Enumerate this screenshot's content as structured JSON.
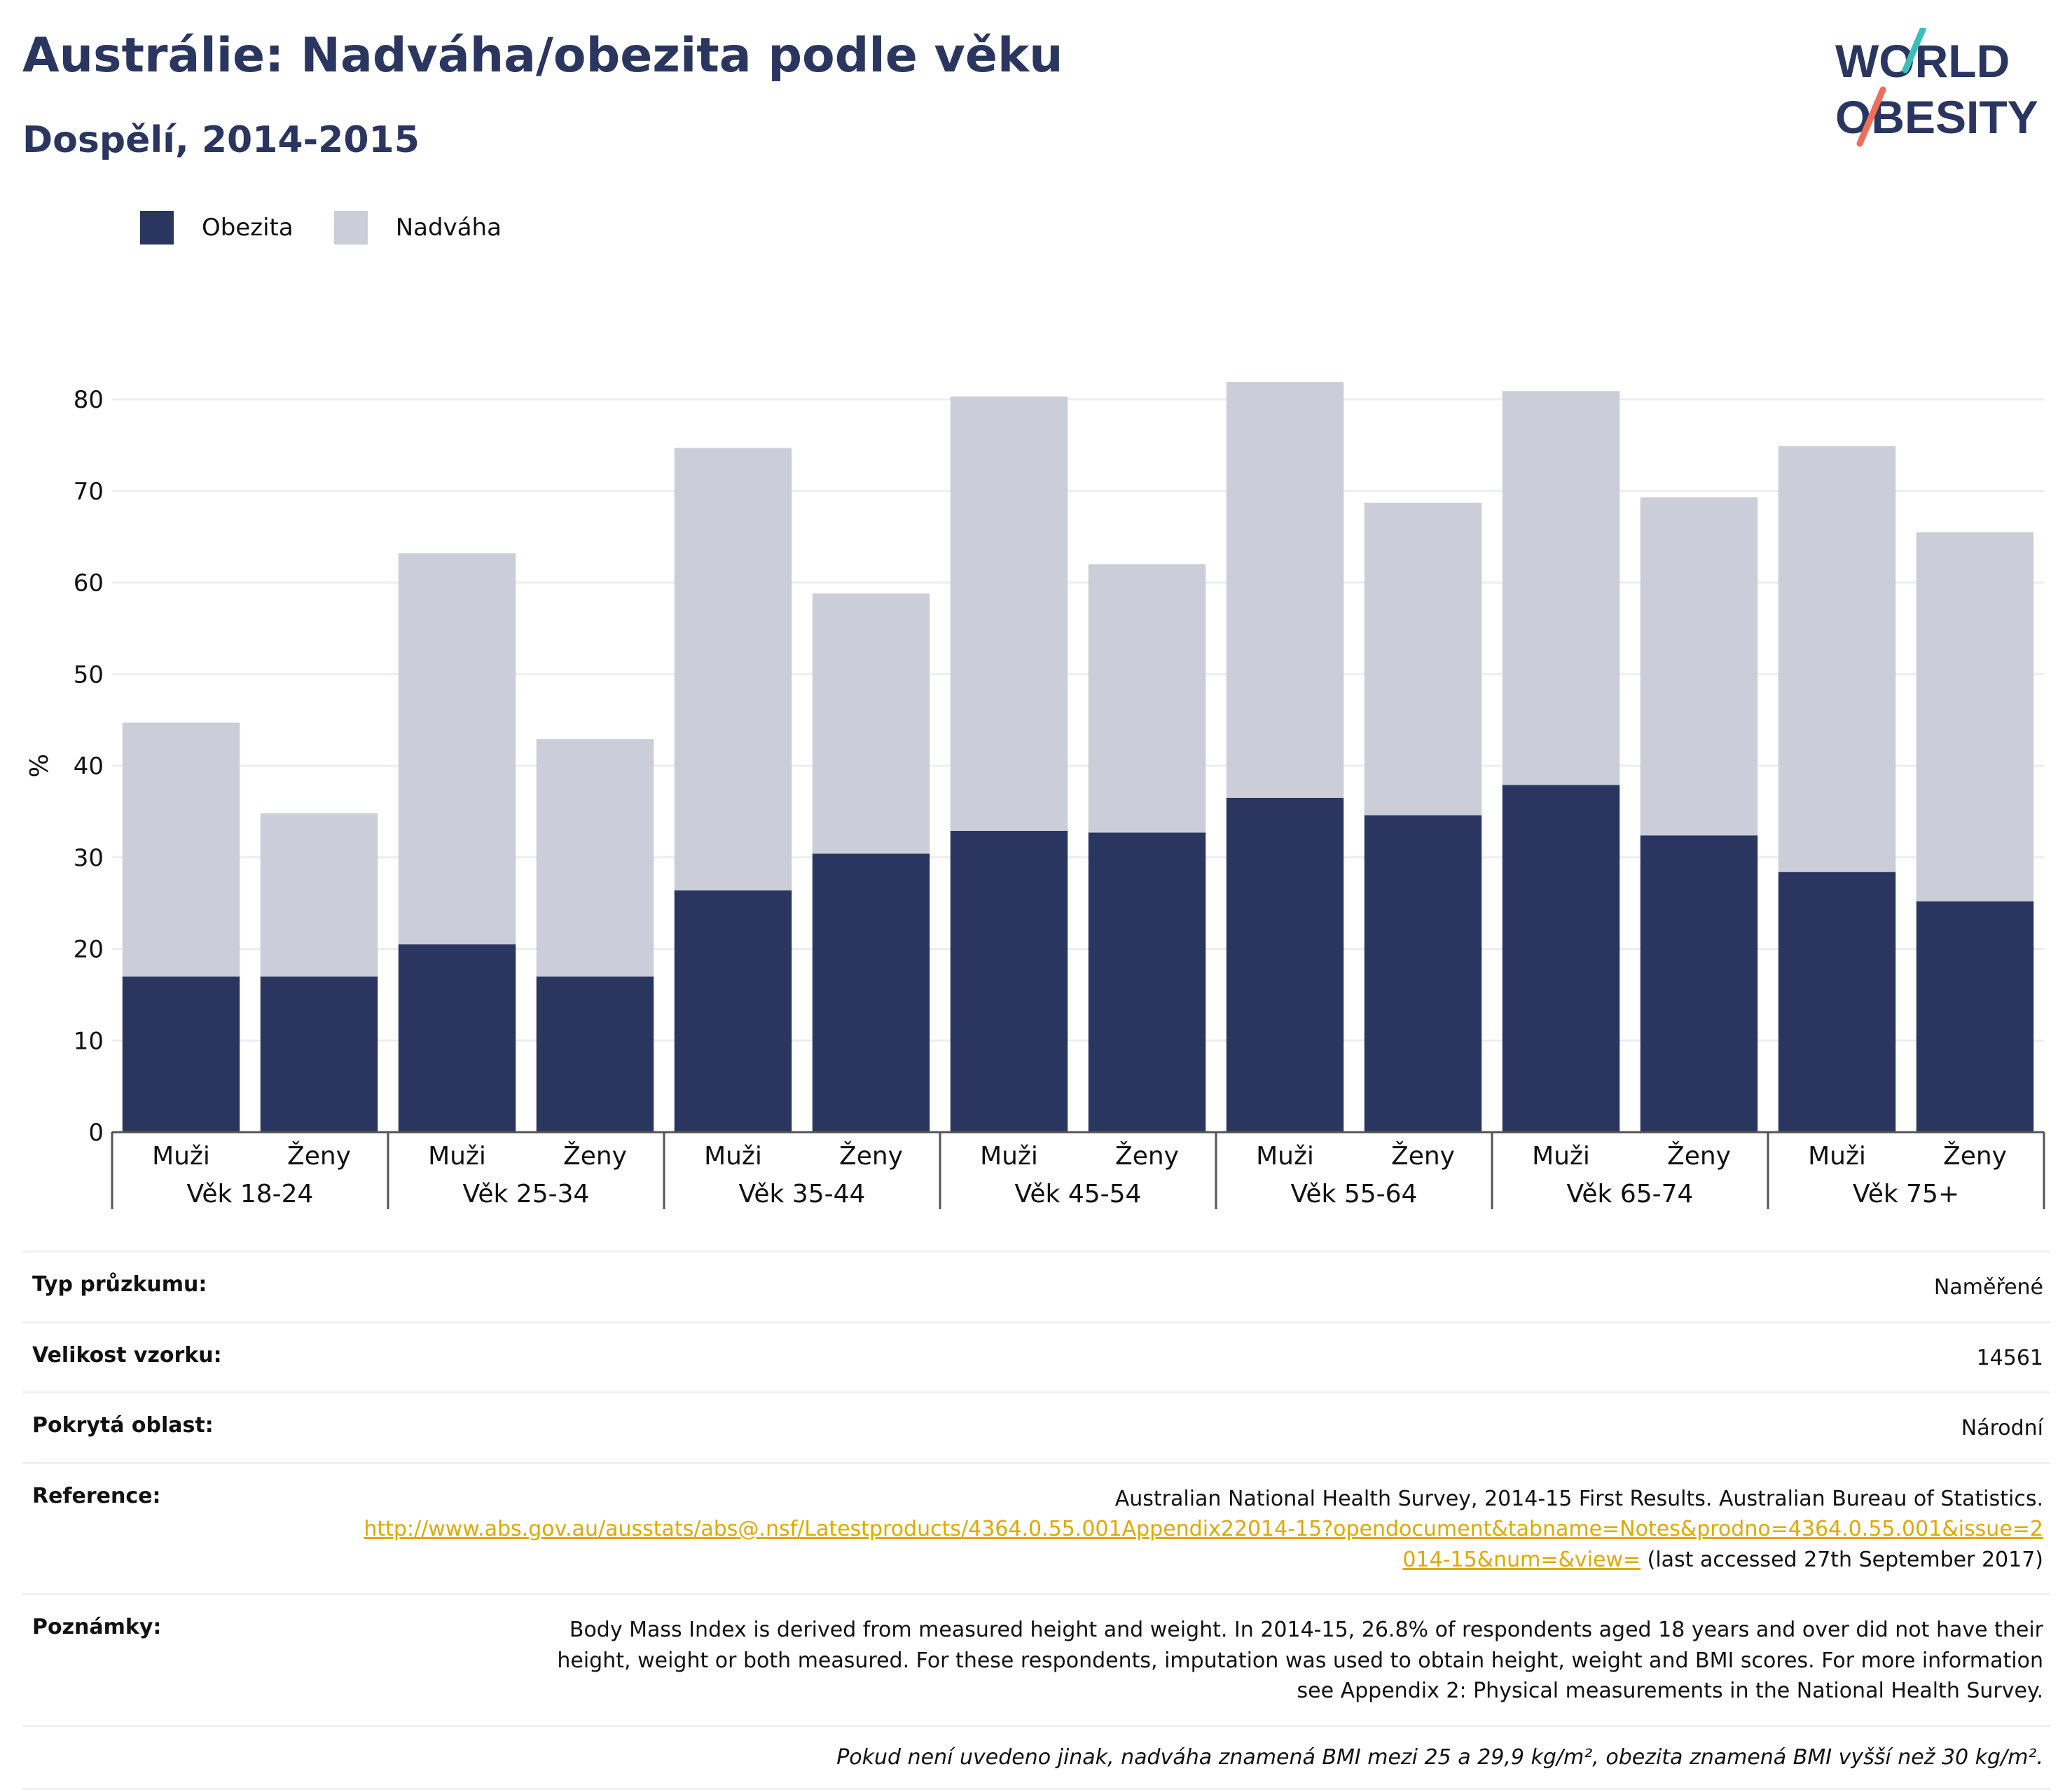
{
  "header": {
    "title": "Austrálie: Nadváha/obezita podle věku",
    "subtitle": "Dospělí, 2014-2015"
  },
  "logo": {
    "line1": "WORLD",
    "line2": "OBESITY"
  },
  "colors": {
    "obesity": "#2a365f",
    "overweight": "#cbcdd8",
    "title": "#2a365f",
    "link": "#e0a800"
  },
  "chart_data": {
    "type": "bar",
    "stacked": true,
    "ylabel": "%",
    "ylim": [
      0,
      80
    ],
    "yticks": [
      0,
      10,
      20,
      30,
      40,
      50,
      60,
      70,
      80
    ],
    "grid": true,
    "legend_position": "top-left",
    "groups": [
      "Věk 18-24",
      "Věk 25-34",
      "Věk 35-44",
      "Věk 45-54",
      "Věk 55-64",
      "Věk 65-74",
      "Věk 75+"
    ],
    "categories": [
      "Muži",
      "Ženy",
      "Muži",
      "Ženy",
      "Muži",
      "Ženy",
      "Muži",
      "Ženy",
      "Muži",
      "Ženy",
      "Muži",
      "Ženy",
      "Muži",
      "Ženy"
    ],
    "series": [
      {
        "name": "Obezita",
        "values": [
          17.0,
          17.0,
          20.5,
          17.0,
          26.4,
          30.4,
          32.9,
          32.7,
          36.5,
          34.6,
          37.9,
          32.4,
          28.4,
          25.2
        ]
      },
      {
        "name": "Nadváha",
        "values": [
          27.7,
          17.8,
          42.7,
          25.9,
          48.3,
          28.4,
          47.4,
          29.3,
          45.4,
          34.1,
          43.0,
          36.9,
          46.5,
          40.3
        ]
      }
    ]
  },
  "info": {
    "survey_type_label": "Typ průzkumu:",
    "survey_type_value": "Naměřené",
    "sample_size_label": "Velikost vzorku:",
    "sample_size_value": "14561",
    "coverage_label": "Pokrytá oblast:",
    "coverage_value": "Národní",
    "reference_label": "Reference:",
    "reference_text": "Australian National Health Survey, 2014-15 First Results. Australian Bureau of Statistics.",
    "reference_link": "http://www.abs.gov.au/ausstats/abs@.nsf/Latestproducts/4364.0.55.001Appendix22014-15?opendocument&tabname=Notes&prodno=4364.0.55.001&issue=2014-15&num=&view=",
    "reference_accessed": "(last accessed 27th September 2017)",
    "notes_label": "Poznámky:",
    "notes_value": "Body Mass Index is derived from measured height and weight. In 2014-15, 26.8% of respondents aged 18 years and over did not have their height, weight or both measured. For these respondents, imputation was used to obtain height, weight and BMI scores. For more information see Appendix 2: Physical measurements in the National Health Survey.",
    "footnote": "Pokud není uvedeno jinak, nadváha znamená BMI mezi 25 a 29,9 kg/m², obezita znamená BMI vyšší než 30 kg/m²."
  }
}
